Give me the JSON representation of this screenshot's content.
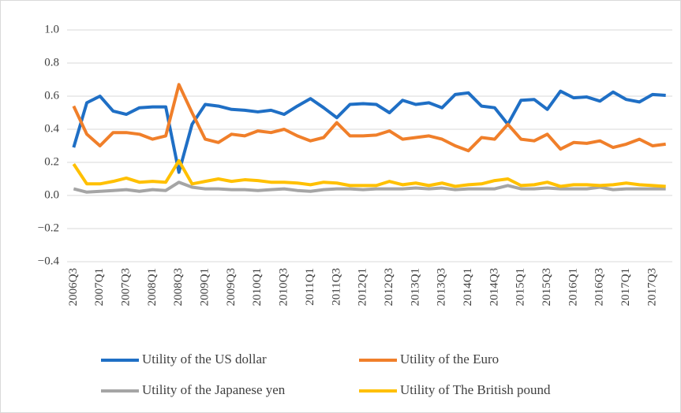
{
  "chart_data": {
    "type": "line",
    "categories": [
      "2006Q3",
      null,
      "2007Q1",
      null,
      "2007Q3",
      null,
      "2008Q1",
      null,
      "2008Q3",
      null,
      "2009Q1",
      null,
      "2009Q3",
      null,
      "2010Q1",
      null,
      "2010Q3",
      null,
      "2011Q1",
      null,
      "2011Q3",
      null,
      "2012Q1",
      null,
      "2012Q3",
      null,
      "2013Q1",
      null,
      "2013Q3",
      null,
      "2014Q1",
      null,
      "2014Q3",
      null,
      "2015Q1",
      null,
      "2015Q3",
      null,
      "2016Q1",
      null,
      "2016Q3",
      null,
      "2017Q1",
      null,
      "2017Q3",
      null
    ],
    "series": [
      {
        "name": "Utility of the US dollar",
        "color": "#1f6fc5",
        "values": [
          0.29,
          0.56,
          0.6,
          0.51,
          0.49,
          0.53,
          0.535,
          0.535,
          0.14,
          0.43,
          0.55,
          0.54,
          0.52,
          0.515,
          0.505,
          0.515,
          0.49,
          0.54,
          0.585,
          0.53,
          0.47,
          0.55,
          0.555,
          0.55,
          0.5,
          0.575,
          0.55,
          0.56,
          0.53,
          0.61,
          0.62,
          0.54,
          0.53,
          0.43,
          0.575,
          0.58,
          0.52,
          0.63,
          0.59,
          0.595,
          0.57,
          0.625,
          0.58,
          0.565,
          0.61,
          0.605
        ]
      },
      {
        "name": "Utility of the Euro",
        "color": "#f07f2a",
        "values": [
          0.54,
          0.37,
          0.3,
          0.38,
          0.38,
          0.37,
          0.34,
          0.36,
          0.67,
          0.5,
          0.34,
          0.32,
          0.37,
          0.36,
          0.39,
          0.38,
          0.4,
          0.36,
          0.33,
          0.35,
          0.44,
          0.36,
          0.36,
          0.365,
          0.39,
          0.34,
          0.35,
          0.36,
          0.34,
          0.3,
          0.27,
          0.35,
          0.34,
          0.43,
          0.34,
          0.33,
          0.37,
          0.28,
          0.32,
          0.315,
          0.33,
          0.29,
          0.31,
          0.34,
          0.3,
          0.31
        ]
      },
      {
        "name": "Utility of the Japanese yen",
        "color": "#a5a5a5",
        "values": [
          0.04,
          0.02,
          0.025,
          0.03,
          0.035,
          0.025,
          0.035,
          0.03,
          0.08,
          0.05,
          0.04,
          0.04,
          0.035,
          0.035,
          0.03,
          0.035,
          0.04,
          0.03,
          0.025,
          0.035,
          0.04,
          0.04,
          0.035,
          0.04,
          0.04,
          0.04,
          0.045,
          0.04,
          0.045,
          0.035,
          0.04,
          0.04,
          0.04,
          0.06,
          0.04,
          0.04,
          0.045,
          0.04,
          0.04,
          0.04,
          0.05,
          0.035,
          0.04,
          0.04,
          0.04,
          0.04
        ]
      },
      {
        "name": "Utility of The British pound",
        "color": "#ffc000",
        "values": [
          0.19,
          0.07,
          0.07,
          0.085,
          0.105,
          0.08,
          0.085,
          0.08,
          0.21,
          0.07,
          0.085,
          0.1,
          0.085,
          0.095,
          0.09,
          0.08,
          0.08,
          0.075,
          0.065,
          0.08,
          0.075,
          0.06,
          0.06,
          0.06,
          0.085,
          0.065,
          0.075,
          0.06,
          0.075,
          0.055,
          0.065,
          0.07,
          0.09,
          0.1,
          0.06,
          0.065,
          0.08,
          0.055,
          0.065,
          0.065,
          0.06,
          0.065,
          0.075,
          0.065,
          0.06,
          0.055
        ]
      }
    ],
    "ylim": [
      -0.4,
      1.0
    ],
    "yticks": [
      {
        "value": 1.0,
        "label": "1.0"
      },
      0.8,
      0.6,
      0.4,
      0.2,
      {
        "value": 0,
        "label": "0.0"
      },
      {
        "value": -0.2,
        "label": "−0.2"
      },
      {
        "value": -0.4,
        "label": "−0.4"
      }
    ],
    "grid": true
  }
}
